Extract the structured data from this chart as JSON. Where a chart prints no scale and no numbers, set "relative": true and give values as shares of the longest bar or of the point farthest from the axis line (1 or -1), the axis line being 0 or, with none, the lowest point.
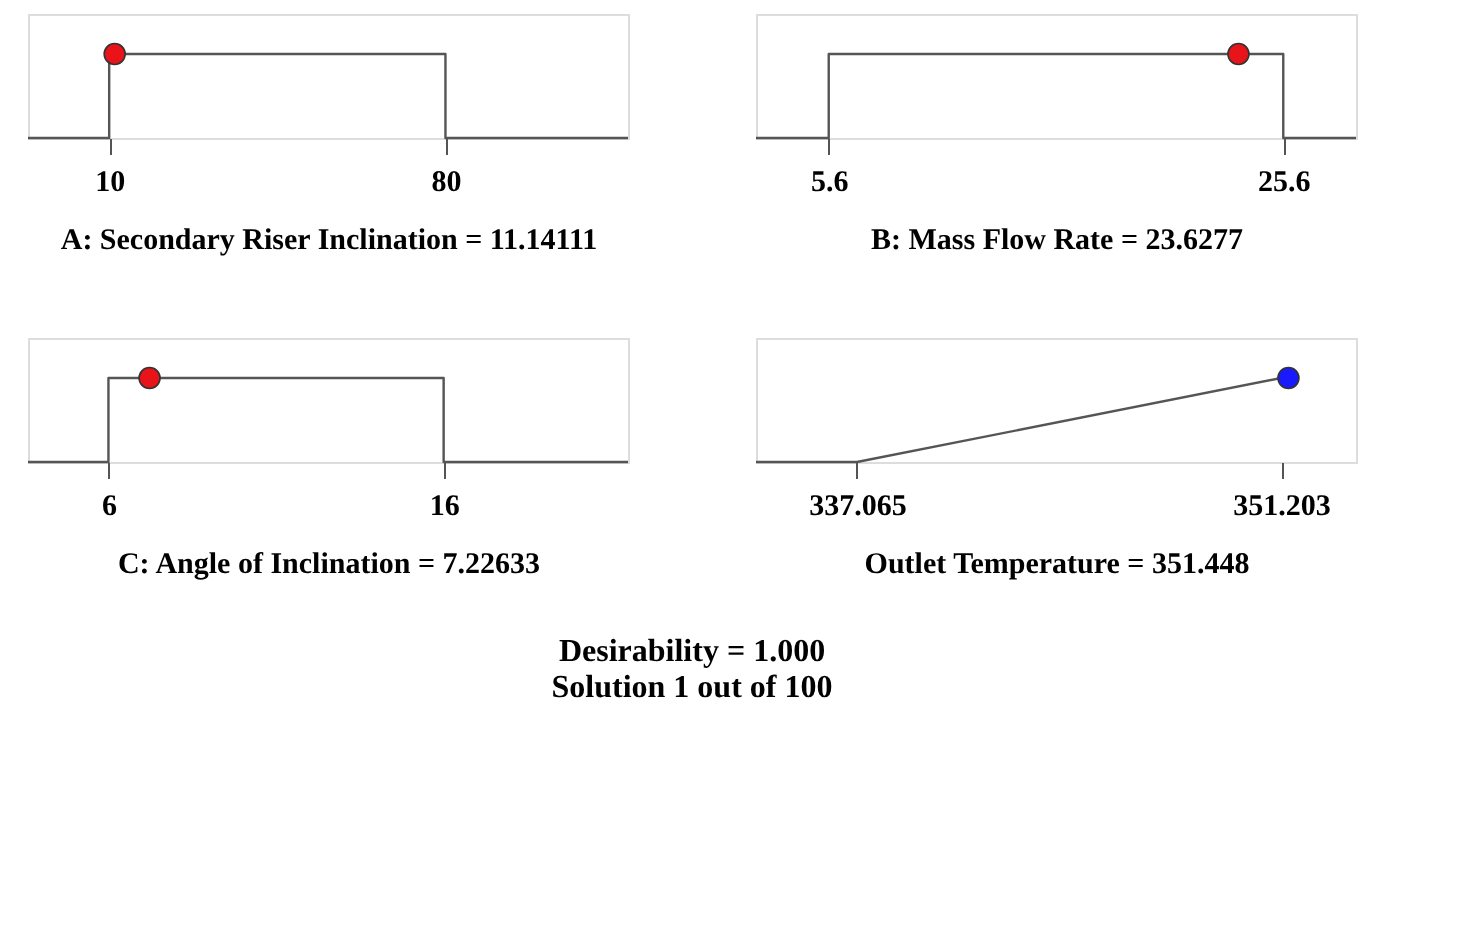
{
  "chart_data": [
    {
      "type": "line",
      "relative": true,
      "xlabel": "A: Secondary Riser Inclination = 11.14111",
      "xlim": [
        -6.9,
        118
      ],
      "xticks": [
        10,
        80
      ],
      "series": [
        {
          "color": "#555555",
          "x": [
            -6.9,
            10,
            10,
            80,
            80,
            118
          ],
          "values": [
            0,
            0,
            1,
            1,
            0,
            0
          ]
        },
        {
          "type": "scatter",
          "color": "#e8141a",
          "x": [
            11.14111
          ],
          "values": [
            1
          ]
        }
      ]
    },
    {
      "type": "line",
      "relative": true,
      "xlabel": "B: Mass Flow Rate = 23.6277",
      "xlim": [
        2.4,
        28.8
      ],
      "xticks": [
        5.6,
        25.6
      ],
      "series": [
        {
          "color": "#555555",
          "x": [
            2.4,
            5.6,
            5.6,
            25.6,
            25.6,
            28.8
          ],
          "values": [
            0,
            0,
            1,
            1,
            0,
            0
          ]
        },
        {
          "type": "scatter",
          "color": "#e8141a",
          "x": [
            23.6277
          ],
          "values": [
            1
          ]
        }
      ]
    },
    {
      "type": "line",
      "relative": true,
      "xlabel": "C: Angle of Inclination = 7.22633",
      "xlim": [
        3.6,
        21.5
      ],
      "xticks": [
        6,
        16
      ],
      "series": [
        {
          "color": "#555555",
          "x": [
            3.6,
            6,
            6,
            16,
            16,
            21.5
          ],
          "values": [
            0,
            0,
            1,
            1,
            0,
            0
          ]
        },
        {
          "type": "scatter",
          "color": "#e8141a",
          "x": [
            7.22633
          ],
          "values": [
            1
          ]
        }
      ]
    },
    {
      "type": "line",
      "relative": true,
      "xlabel": "Outlet Temperature = 351.448",
      "xlim": [
        333.7,
        353.7
      ],
      "xticks": [
        337.065,
        351.203
      ],
      "annotations": [
        "Desirability = 1.000",
        "Solution 1 out of 100"
      ],
      "series": [
        {
          "color": "#555555",
          "x": [
            333.7,
            337.065,
            351.203
          ],
          "values": [
            0,
            0,
            1
          ]
        },
        {
          "type": "scatter",
          "color": "#1a1aff",
          "x": [
            351.448
          ],
          "values": [
            1
          ]
        }
      ]
    }
  ]
}
